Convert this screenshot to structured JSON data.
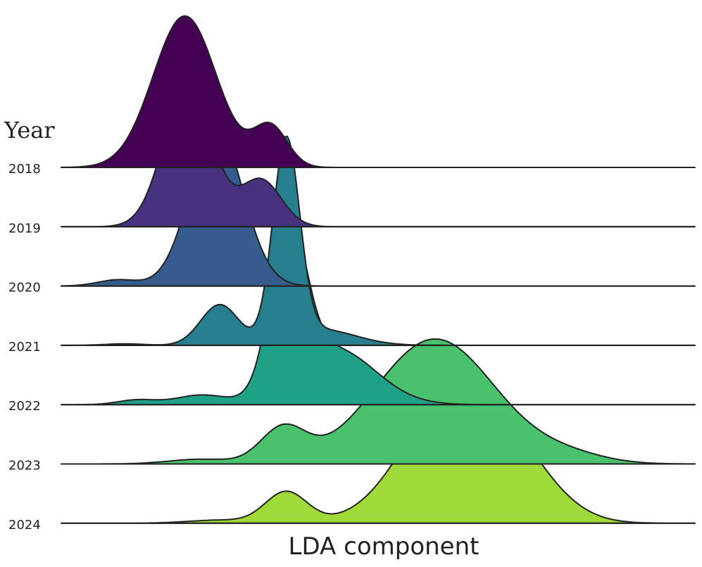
{
  "chart_data": {
    "type": "ridgeline",
    "title": "",
    "xlabel": "LDA component",
    "ylabel": "Year",
    "xlim": [
      0,
      100
    ],
    "density_max": 1.0,
    "legend": "none",
    "grid": false,
    "series": [
      {
        "name": "2018",
        "color": "#440154",
        "components": [
          {
            "mu": 19.5,
            "sigma": 5.0,
            "weight": 0.97
          },
          {
            "mu": 33.0,
            "sigma": 2.7,
            "weight": 0.26
          }
        ]
      },
      {
        "name": "2019",
        "color": "#46327e",
        "components": [
          {
            "mu": 20.0,
            "sigma": 3.8,
            "weight": 0.91
          },
          {
            "mu": 31.5,
            "sigma": 3.2,
            "weight": 0.3
          }
        ]
      },
      {
        "name": "2020",
        "color": "#365c8d",
        "components": [
          {
            "mu": 24.5,
            "sigma": 4.2,
            "weight": 1.0
          },
          {
            "mu": 9.0,
            "sigma": 3.2,
            "weight": 0.04
          }
        ]
      },
      {
        "name": "2021",
        "color": "#277f8e",
        "components": [
          {
            "mu": 35.5,
            "sigma": 2.1,
            "weight": 1.28
          },
          {
            "mu": 25.0,
            "sigma": 3.0,
            "weight": 0.26
          },
          {
            "mu": 41.0,
            "sigma": 5.5,
            "weight": 0.1
          },
          {
            "mu": 10.0,
            "sigma": 3.0,
            "weight": 0.01
          }
        ]
      },
      {
        "name": "2022",
        "color": "#1fa187",
        "components": [
          {
            "mu": 35.8,
            "sigma": 2.8,
            "weight": 1.0
          },
          {
            "mu": 43.0,
            "sigma": 6.5,
            "weight": 0.36
          },
          {
            "mu": 22.0,
            "sigma": 4.0,
            "weight": 0.06
          },
          {
            "mu": 12.0,
            "sigma": 3.0,
            "weight": 0.03
          }
        ]
      },
      {
        "name": "2023",
        "color": "#4ac16d",
        "components": [
          {
            "mu": 59.0,
            "sigma": 9.5,
            "weight": 0.8
          },
          {
            "mu": 35.0,
            "sigma": 3.5,
            "weight": 0.22
          },
          {
            "mu": 80.0,
            "sigma": 6.0,
            "weight": 0.05
          },
          {
            "mu": 22.0,
            "sigma": 5.0,
            "weight": 0.03
          }
        ]
      },
      {
        "name": "2024",
        "color": "#a0da39",
        "components": [
          {
            "mu": 63.0,
            "sigma": 8.2,
            "weight": 0.9
          },
          {
            "mu": 35.5,
            "sigma": 3.3,
            "weight": 0.2
          },
          {
            "mu": 74.0,
            "sigma": 6.0,
            "weight": 0.12
          },
          {
            "mu": 25.0,
            "sigma": 5.0,
            "weight": 0.02
          }
        ]
      }
    ]
  }
}
